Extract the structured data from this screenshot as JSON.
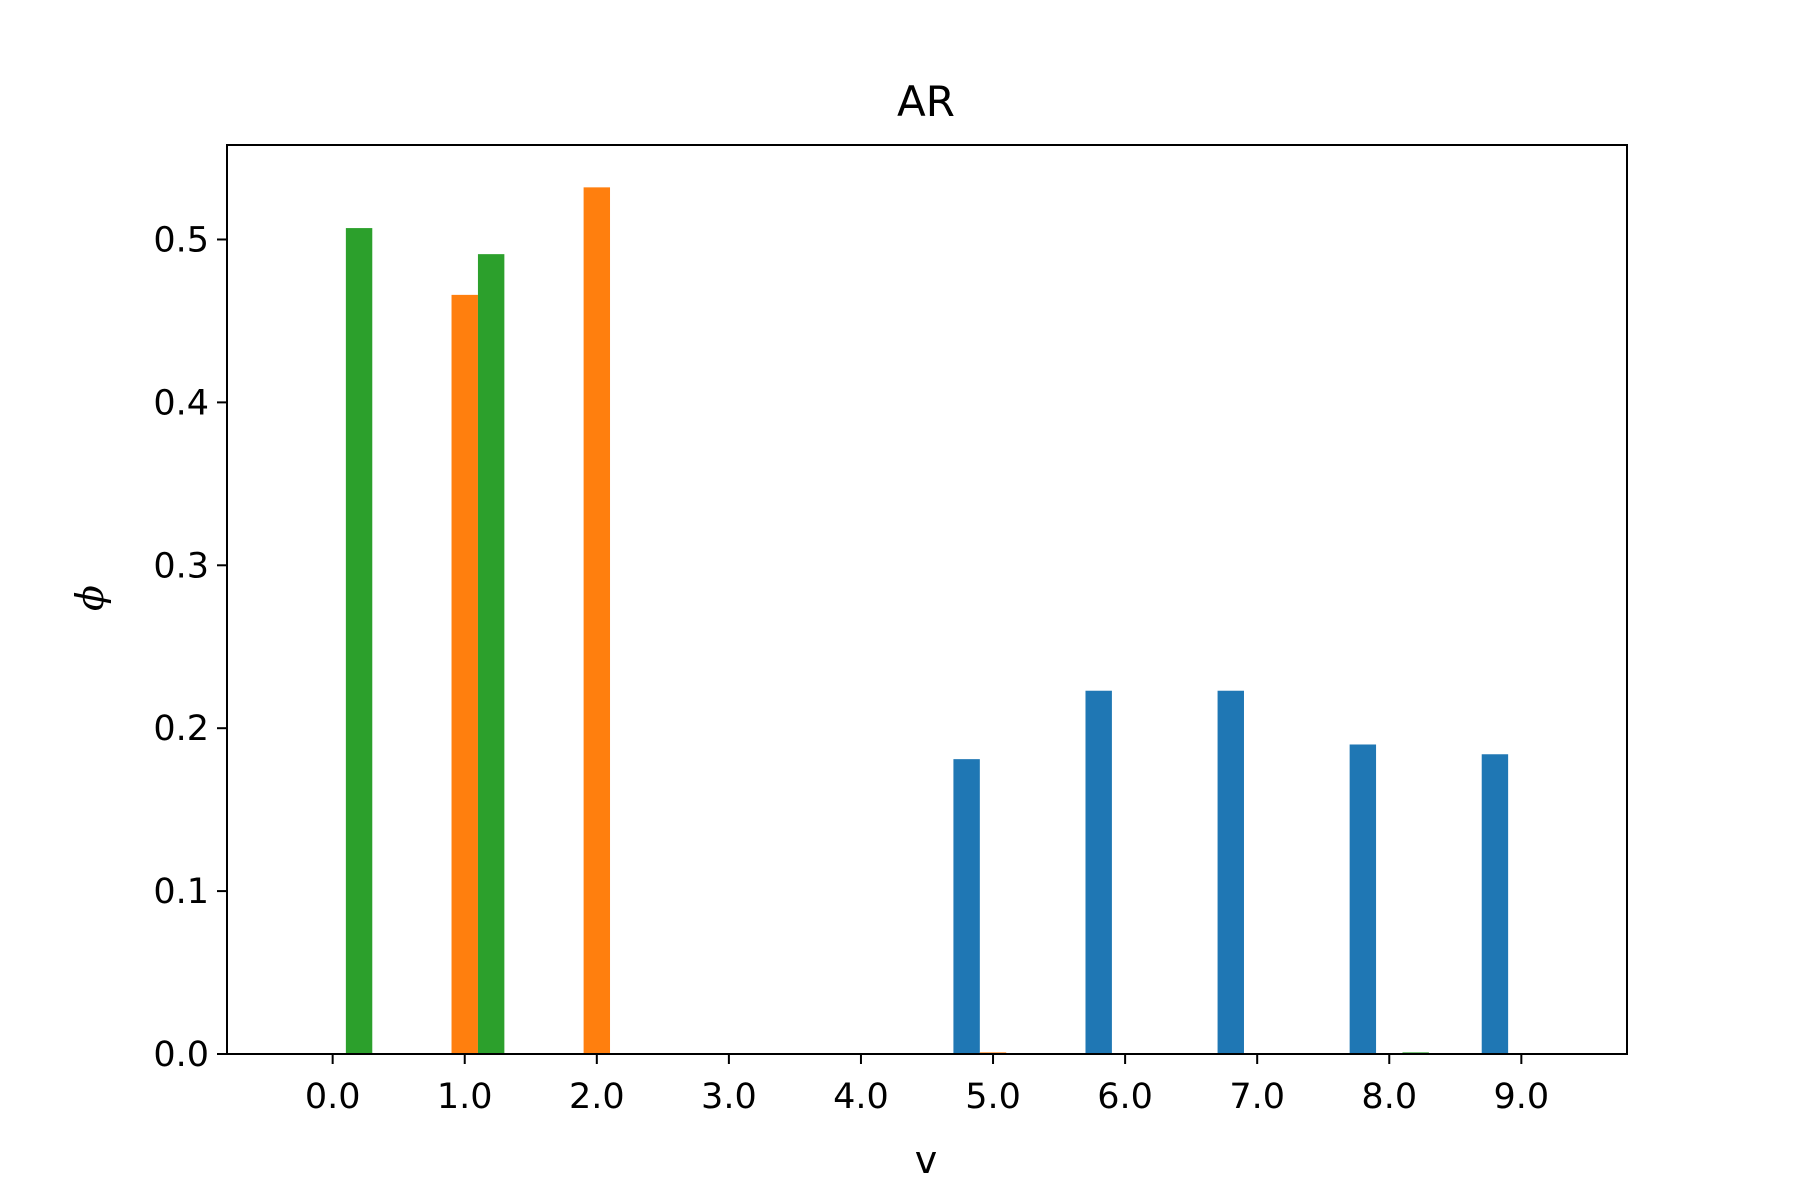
{
  "chart_data": {
    "type": "bar",
    "title": "AR",
    "xlabel": "v",
    "ylabel": "ϕ",
    "categories": [
      "0.0",
      "1.0",
      "2.0",
      "3.0",
      "4.0",
      "5.0",
      "6.0",
      "7.0",
      "8.0",
      "9.0"
    ],
    "x_ticks": [
      "0.0",
      "1.0",
      "2.0",
      "3.0",
      "4.0",
      "5.0",
      "6.0",
      "7.0",
      "8.0",
      "9.0"
    ],
    "y_ticks": [
      "0.0",
      "0.1",
      "0.2",
      "0.3",
      "0.4",
      "0.5"
    ],
    "ylim": [
      0,
      0.558
    ],
    "xlim": [
      -0.8,
      9.8
    ],
    "grid": false,
    "legend": "none",
    "series": [
      {
        "color": "#1f77b4",
        "values": [
          0,
          0,
          0,
          0,
          0,
          0.181,
          0.223,
          0.223,
          0.19,
          0.184
        ]
      },
      {
        "color": "#ff7f0e",
        "values": [
          0,
          0.466,
          0.532,
          0,
          0,
          0.001,
          0,
          0,
          0,
          0
        ]
      },
      {
        "color": "#2ca02c",
        "values": [
          0.507,
          0.491,
          0,
          0,
          0,
          0,
          0,
          0,
          0.001,
          0
        ]
      }
    ]
  }
}
